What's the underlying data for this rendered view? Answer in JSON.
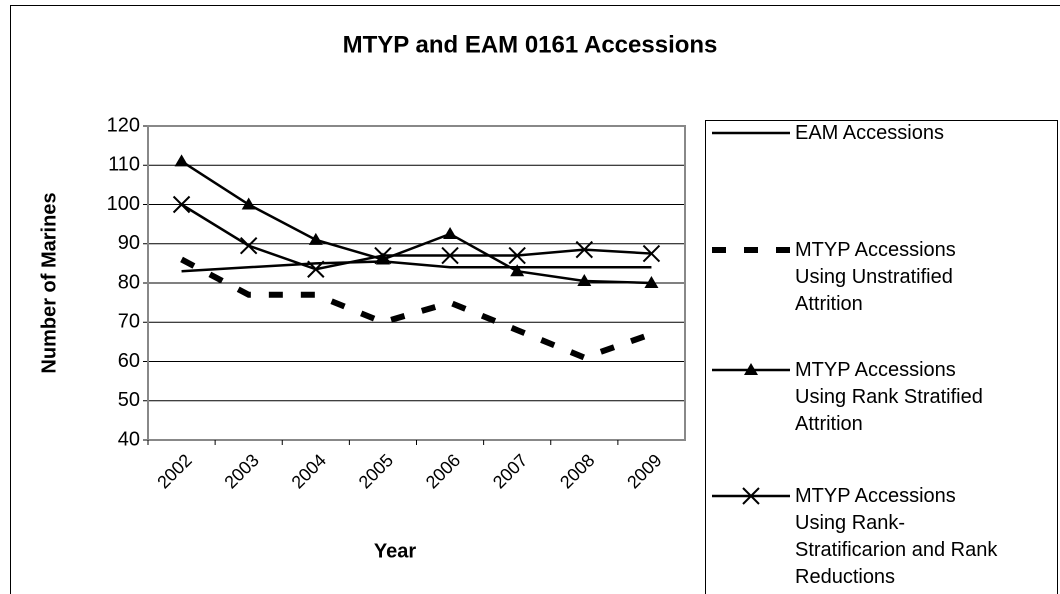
{
  "chart_data": {
    "type": "line",
    "title": "MTYP and EAM 0161 Accessions",
    "x_label": "Year",
    "y_label": "Number of Marines",
    "categories": [
      "2002",
      "2003",
      "2004",
      "2005",
      "2006",
      "2007",
      "2008",
      "2009"
    ],
    "ylim": [
      40,
      120
    ],
    "yticks": [
      40,
      50,
      60,
      70,
      80,
      90,
      100,
      110,
      120
    ],
    "grid": true,
    "series": [
      {
        "name": "EAM Accessions",
        "color": "#000000",
        "marker": "none",
        "dashed": false,
        "values": [
          83,
          84,
          85,
          85.5,
          84,
          84,
          84,
          84
        ]
      },
      {
        "name": "MTYP Accessions Using Unstratified Attrition",
        "color": "#000000",
        "marker": "none",
        "dashed": true,
        "values": [
          86,
          77,
          77,
          70,
          75,
          68,
          61,
          67
        ]
      },
      {
        "name": "MTYP Accessions Using Rank Stratified Attrition",
        "color": "#000000",
        "marker": "triangle",
        "dashed": false,
        "values": [
          111,
          100,
          91,
          86,
          92.5,
          83,
          80.5,
          80
        ]
      },
      {
        "name": "MTYP Accessions Using Rank-Stratificarion and Rank Reductions",
        "color": "#000000",
        "marker": "x",
        "dashed": false,
        "values": [
          100,
          89.5,
          83.5,
          87,
          87,
          87,
          88.5,
          87.5
        ]
      }
    ]
  }
}
